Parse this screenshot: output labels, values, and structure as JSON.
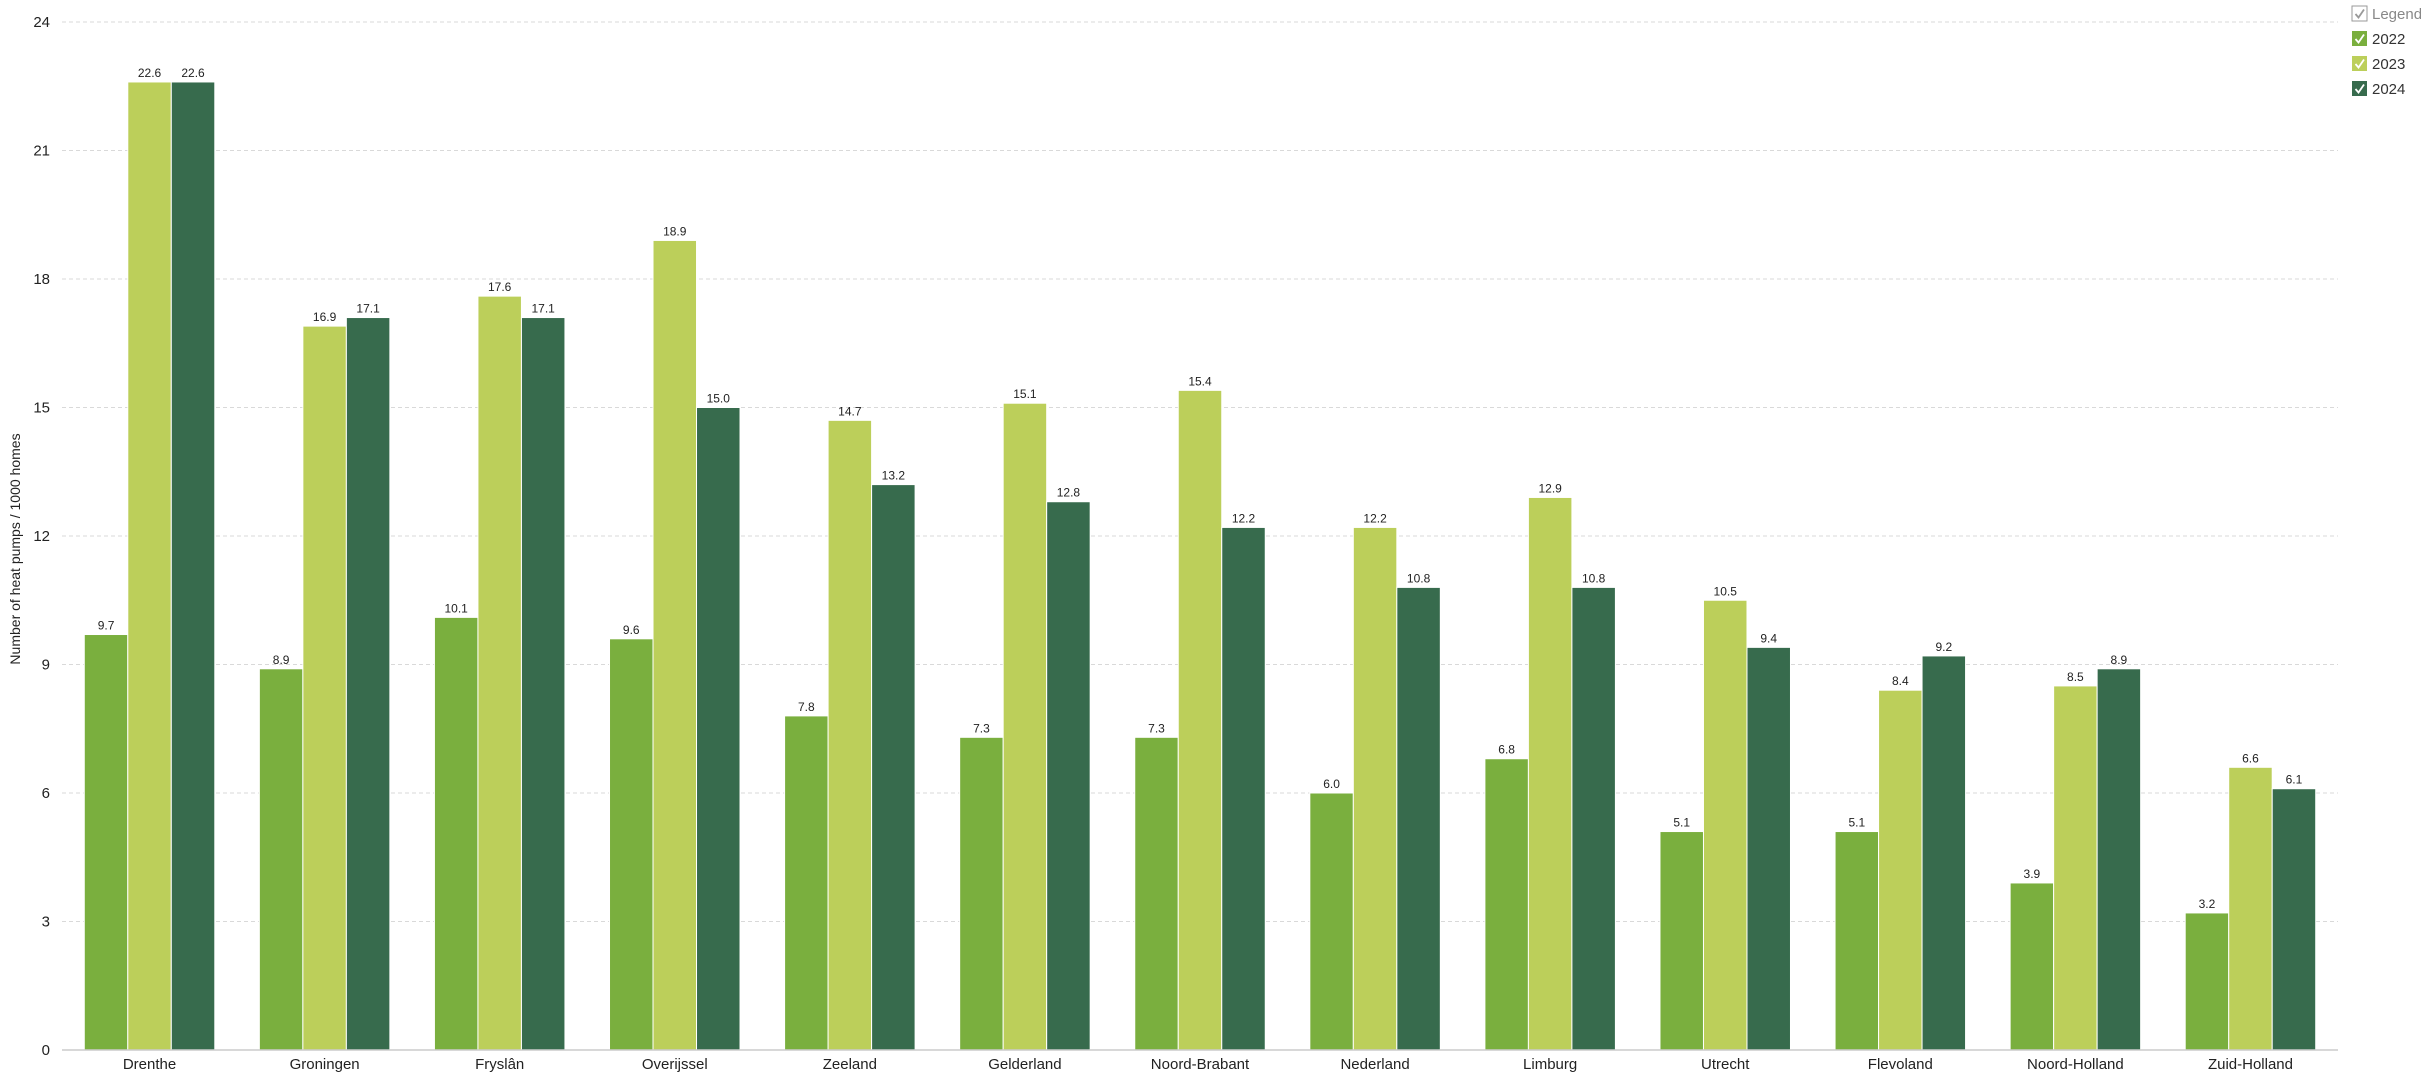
{
  "chart_data": {
    "type": "bar",
    "title": "",
    "xlabel": "",
    "ylabel": "Number of heat pumps / 1000 homes",
    "ylim": [
      0,
      24
    ],
    "yticks": [
      0,
      3,
      6,
      9,
      12,
      15,
      18,
      21,
      24
    ],
    "grid": true,
    "legend_placement": "top-right",
    "legend_title": "Legenda",
    "categories": [
      "Drenthe",
      "Groningen",
      "Fryslân",
      "Overijssel",
      "Zeeland",
      "Gelderland",
      "Noord-Brabant",
      "Nederland",
      "Limburg",
      "Utrecht",
      "Flevoland",
      "Noord-Holland",
      "Zuid-Holland"
    ],
    "series": [
      {
        "name": "2022",
        "color": "#7aaf3e",
        "values": [
          9.7,
          8.9,
          10.1,
          9.6,
          7.8,
          7.3,
          7.3,
          6.0,
          6.8,
          5.1,
          5.1,
          3.9,
          3.2
        ]
      },
      {
        "name": "2023",
        "color": "#bccf5a",
        "values": [
          22.6,
          16.9,
          17.6,
          18.9,
          14.7,
          15.1,
          15.4,
          12.2,
          12.9,
          10.5,
          8.4,
          8.5,
          6.6
        ]
      },
      {
        "name": "2024",
        "color": "#376b4d",
        "values": [
          22.6,
          17.1,
          17.1,
          15.0,
          13.2,
          12.8,
          12.2,
          10.8,
          10.8,
          9.4,
          9.2,
          8.9,
          6.1
        ]
      }
    ]
  }
}
